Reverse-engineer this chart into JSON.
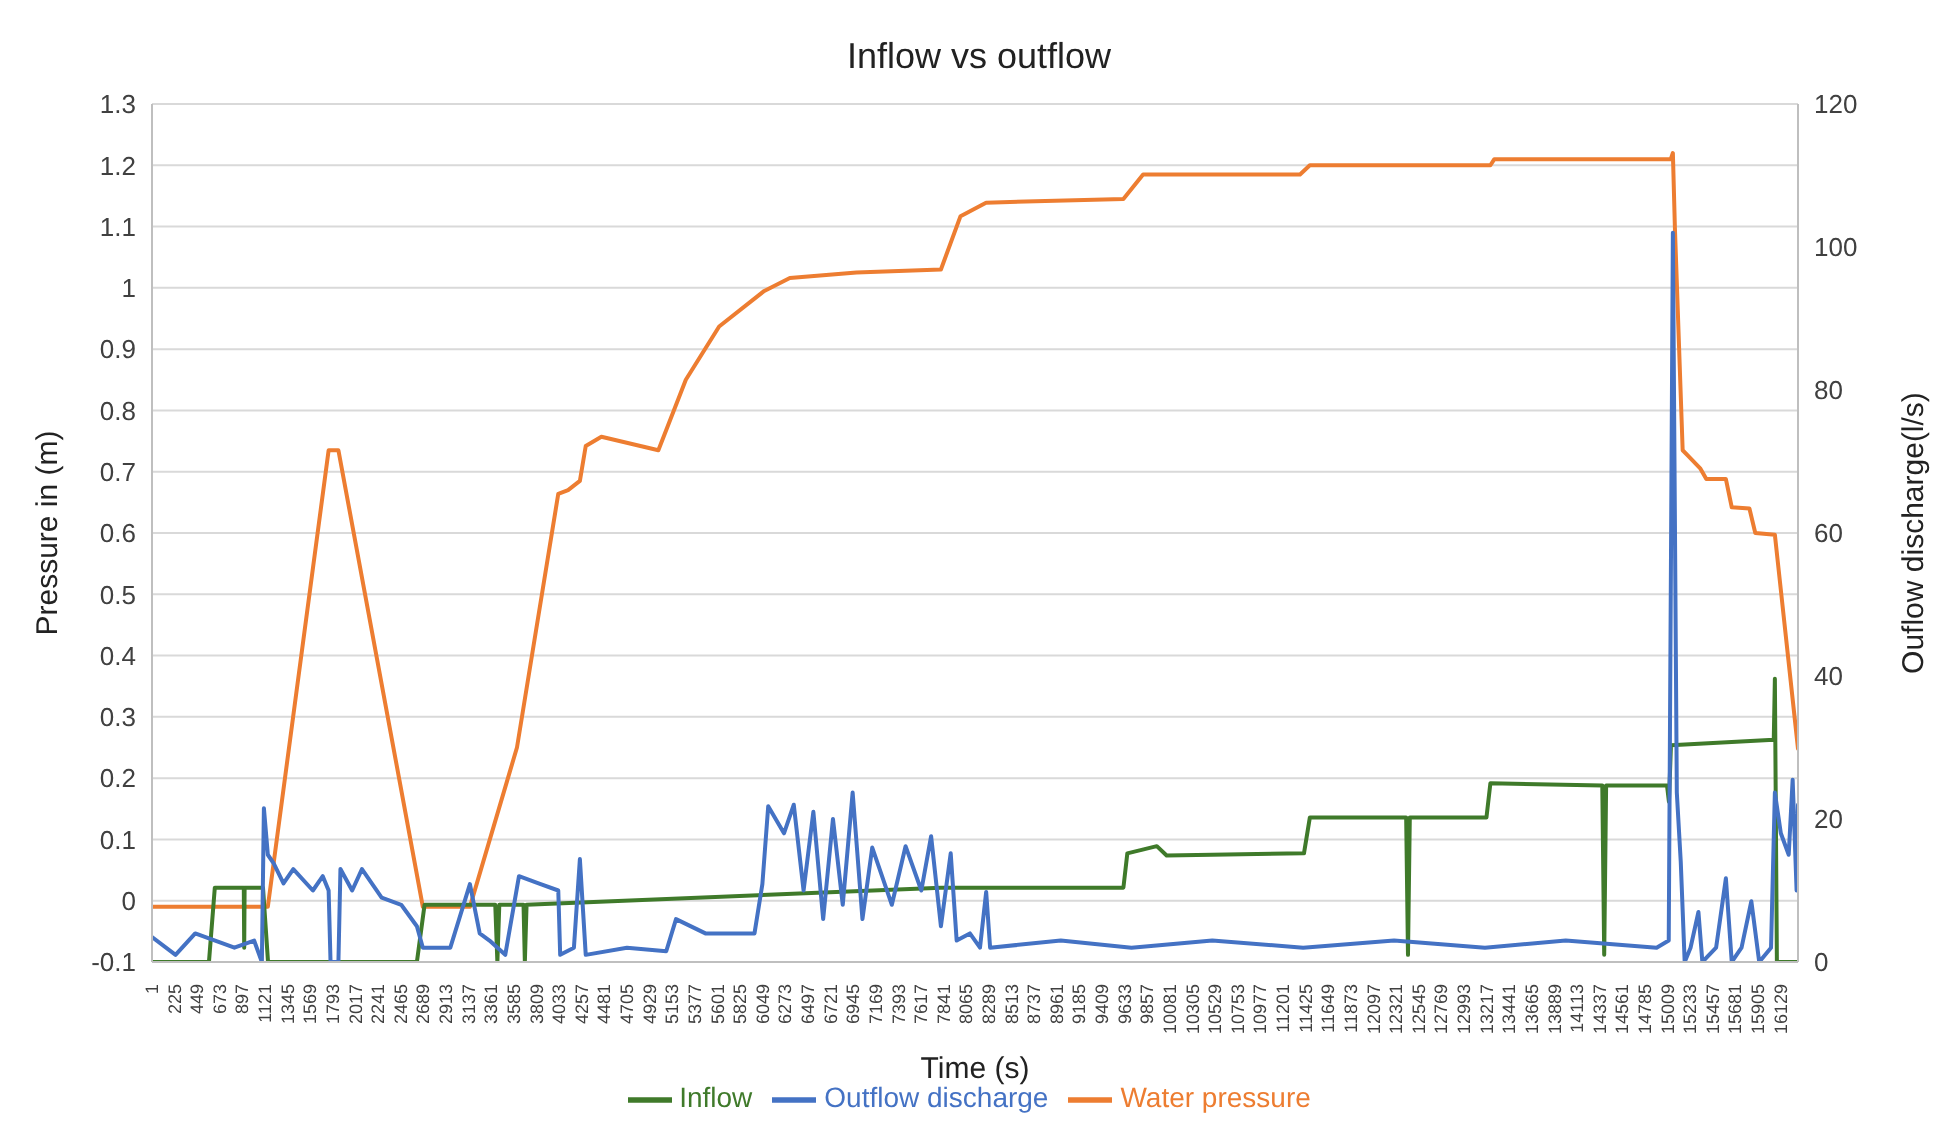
{
  "chart_data": {
    "type": "line",
    "title": "Inflow vs outflow",
    "xlabel": "Time (s)",
    "ylabel": "Pressure in (m)",
    "y2label": "Ouflow discharge(l/s)",
    "xlim": [
      1,
      16300
    ],
    "xticks": [
      1,
      225,
      449,
      673,
      897,
      1121,
      1345,
      1569,
      1793,
      2017,
      2241,
      2465,
      2689,
      2913,
      3137,
      3361,
      3585,
      3809,
      4033,
      4257,
      4481,
      4705,
      4929,
      5153,
      5377,
      5601,
      5825,
      6049,
      6273,
      6497,
      6721,
      6945,
      7169,
      7393,
      7617,
      7841,
      8065,
      8289,
      8513,
      8737,
      8961,
      9185,
      9409,
      9633,
      9857,
      10081,
      10305,
      10529,
      10753,
      10977,
      11201,
      11425,
      11649,
      11873,
      12097,
      12321,
      12545,
      12769,
      12993,
      13217,
      13441,
      13665,
      13889,
      14113,
      14337,
      14561,
      14785,
      15009,
      15233,
      15457,
      15681,
      15905,
      16129
    ],
    "ylim": [
      -0.1,
      1.3
    ],
    "yticks": [
      -0.1,
      0,
      0.1,
      0.2,
      0.3,
      0.4,
      0.5,
      0.6,
      0.7,
      0.8,
      0.9,
      1,
      1.1,
      1.2,
      1.3
    ],
    "y2lim": [
      0,
      120
    ],
    "y2ticks": [
      0,
      20,
      40,
      60,
      80,
      100,
      120
    ],
    "grid": "y",
    "legend": "bottom",
    "marker": "none",
    "line_style": "solid",
    "series": [
      {
        "name": "Water pressure",
        "color": "#ed7d31",
        "x": [
          1,
          1148,
          1750,
          1847,
          2683,
          3149,
          3615,
          4024,
          4121,
          4238,
          4296,
          4451,
          5015,
          5287,
          5617,
          6064,
          6317,
          6977,
          7813,
          8007,
          8260,
          9620,
          9815,
          11369,
          11466,
          13254,
          13293,
          15040,
          15061,
          15081,
          15158,
          15217,
          15334,
          15392,
          15586,
          15644,
          15819,
          15877,
          16071,
          16300
        ],
        "values": [
          -0.01,
          -0.01,
          0.735,
          0.735,
          -0.01,
          -0.01,
          0.25,
          0.664,
          0.67,
          0.685,
          0.742,
          0.757,
          0.735,
          0.85,
          0.937,
          0.995,
          1.016,
          1.025,
          1.03,
          1.117,
          1.139,
          1.145,
          1.185,
          1.185,
          1.2,
          1.2,
          1.21,
          1.21,
          1.22,
          1.098,
          0.735,
          0.725,
          0.705,
          0.688,
          0.688,
          0.642,
          0.64,
          0.6,
          0.597,
          0.248
        ]
      },
      {
        "name": "Inflow",
        "color": "#3f7a2a",
        "axis": "y2",
        "x": [
          1,
          565,
          623,
          910,
          914,
          918,
          1100,
          1150,
          2624,
          2700,
          3400,
          3421,
          3440,
          3680,
          3693,
          3710,
          7813,
          9620,
          9659,
          9951,
          10048,
          11408,
          11466,
          12420,
          12438,
          12456,
          13215,
          13254,
          14362,
          14381,
          14400,
          15003,
          15022,
          15042,
          16060,
          16071,
          16091,
          16300
        ],
        "values": [
          0,
          0,
          10.4,
          10.4,
          2,
          10.4,
          10.4,
          0,
          0,
          8,
          8,
          0,
          8,
          8,
          0,
          8,
          10.4,
          10.4,
          15.2,
          16.2,
          14.9,
          15.2,
          20.2,
          20.2,
          1,
          20.2,
          20.2,
          25,
          24.7,
          1,
          24.7,
          24.7,
          22.4,
          30.3,
          31.1,
          39.6,
          0,
          0
        ]
      },
      {
        "name": "Outflow discharge",
        "color": "#4472c4",
        "axis": "y2",
        "x": [
          1,
          234,
          429,
          817,
          1012,
          1089,
          1109,
          1148,
          1206,
          1303,
          1400,
          1594,
          1692,
          1750,
          1769,
          1847,
          1867,
          1983,
          2080,
          2275,
          2469,
          2624,
          2683,
          2955,
          3149,
          3246,
          3343,
          3499,
          3635,
          3829,
          4024,
          4043,
          4179,
          4238,
          4296,
          4704,
          5093,
          5190,
          5481,
          5967,
          6045,
          6103,
          6259,
          6356,
          6453,
          6550,
          6647,
          6744,
          6841,
          6939,
          7036,
          7133,
          7230,
          7327,
          7463,
          7619,
          7716,
          7813,
          7910,
          7969,
          8100,
          8200,
          8261,
          8300,
          9000,
          9700,
          10500,
          11400,
          12300,
          13200,
          14000,
          14900,
          15020,
          15061,
          15100,
          15139,
          15178,
          15236,
          15314,
          15353,
          15489,
          15586,
          15644,
          15741,
          15838,
          15916,
          16033,
          16071,
          16130,
          16208,
          16247,
          16286,
          16300
        ],
        "values": [
          3.5,
          1,
          4,
          2,
          3,
          0,
          21.5,
          15,
          13.8,
          11,
          13,
          10,
          12,
          10,
          0,
          0,
          13,
          10,
          13,
          9,
          8,
          5,
          2,
          2,
          10.9,
          4,
          3,
          1,
          12,
          11,
          10,
          1,
          2,
          14.4,
          1,
          2,
          1.5,
          6,
          4,
          4,
          10.9,
          21.8,
          18,
          22,
          10,
          21,
          6,
          20,
          8,
          23.7,
          6,
          16,
          12,
          8,
          16.2,
          10,
          17.6,
          5,
          15.2,
          3,
          4,
          2,
          9.8,
          2,
          3,
          2,
          3,
          2,
          3,
          2,
          3,
          2,
          3,
          102,
          23.7,
          14,
          0,
          2,
          7,
          0,
          2,
          11.7,
          0,
          2,
          8.5,
          0,
          2,
          23.7,
          18,
          15,
          25.5,
          10,
          22
        ]
      }
    ]
  }
}
